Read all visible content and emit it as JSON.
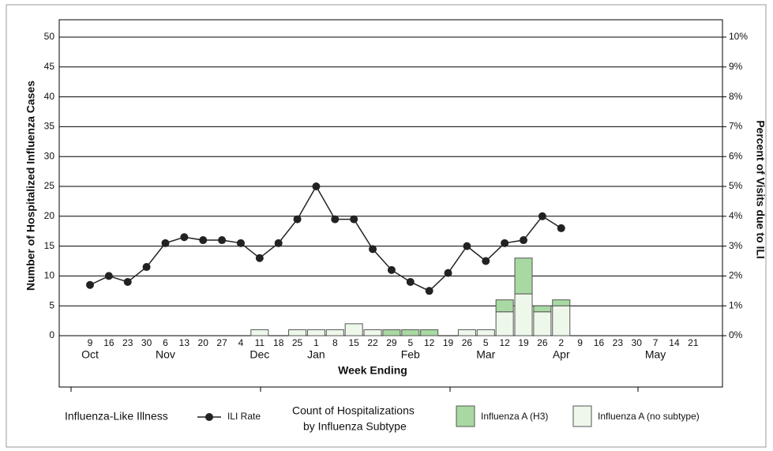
{
  "chart_data": {
    "type": "bar-line",
    "y_label": "Number of Hospitalized Influenza Cases",
    "y2_label": "Percent of Visits due to ILI",
    "x_label": "Week Ending",
    "categories": [
      "9",
      "16",
      "23",
      "30",
      "6",
      "13",
      "20",
      "27",
      "4",
      "11",
      "18",
      "25",
      "1",
      "8",
      "15",
      "22",
      "29",
      "5",
      "12",
      "19",
      "26",
      "5",
      "12",
      "19",
      "26",
      "2",
      "9",
      "16",
      "23",
      "30",
      "7",
      "14",
      "21"
    ],
    "x_groups": [
      "Oct",
      null,
      null,
      null,
      "Nov",
      null,
      null,
      null,
      null,
      "Dec",
      null,
      null,
      "Jan",
      null,
      null,
      null,
      null,
      "Feb",
      null,
      null,
      null,
      "Mar",
      null,
      null,
      null,
      "Apr",
      null,
      null,
      null,
      null,
      "May",
      null,
      null
    ],
    "ylim": [
      0,
      50
    ],
    "yticks": [
      0,
      5,
      10,
      15,
      20,
      25,
      30,
      35,
      40,
      45,
      50
    ],
    "y2lim": [
      0,
      10
    ],
    "y2ticks": [
      {
        "value": 0,
        "label": "0%"
      },
      {
        "value": 1,
        "label": "1%"
      },
      {
        "value": 2,
        "label": "2%"
      },
      {
        "value": 3,
        "label": "3%"
      },
      {
        "value": 4,
        "label": "4%"
      },
      {
        "value": 5,
        "label": "5%"
      },
      {
        "value": 6,
        "label": "6%"
      },
      {
        "value": 7,
        "label": "7%"
      },
      {
        "value": 8,
        "label": "8%"
      },
      {
        "value": 9,
        "label": "9%"
      },
      {
        "value": 10,
        "label": "10%"
      }
    ],
    "grid": true,
    "legend_titles": [
      "Influenza-Like Illness",
      "Count of Hospitalizations",
      "by Influenza Subtype"
    ],
    "series": [
      {
        "name": "ILI Rate",
        "type": "line",
        "axis": "y2",
        "color": "#222222",
        "values": [
          1.7,
          2.0,
          1.8,
          2.3,
          3.1,
          3.3,
          3.2,
          3.2,
          3.1,
          2.6,
          3.1,
          3.9,
          5.0,
          3.9,
          3.9,
          2.9,
          2.2,
          1.8,
          1.5,
          2.1,
          3.0,
          2.5,
          3.1,
          3.2,
          4.0,
          3.6,
          null,
          null,
          null,
          null,
          null,
          null,
          null
        ]
      },
      {
        "name": "Influenza A (H3)",
        "type": "bar",
        "color": "#a8d9a2",
        "values": [
          0,
          0,
          0,
          0,
          0,
          0,
          0,
          0,
          0,
          0,
          0,
          0,
          0,
          0,
          0,
          0,
          1,
          1,
          1,
          0,
          0,
          0,
          2,
          6,
          1,
          1,
          0,
          0,
          0,
          0,
          0,
          0,
          0
        ]
      },
      {
        "name": "Influenza A (no subtype)",
        "type": "bar",
        "color": "#eef8ea",
        "values": [
          0,
          0,
          0,
          0,
          0,
          0,
          0,
          0,
          0,
          1,
          0,
          1,
          1,
          1,
          2,
          1,
          0,
          0,
          0,
          0,
          1,
          1,
          4,
          7,
          4,
          5,
          0,
          0,
          0,
          0,
          0,
          0,
          0
        ]
      }
    ]
  }
}
